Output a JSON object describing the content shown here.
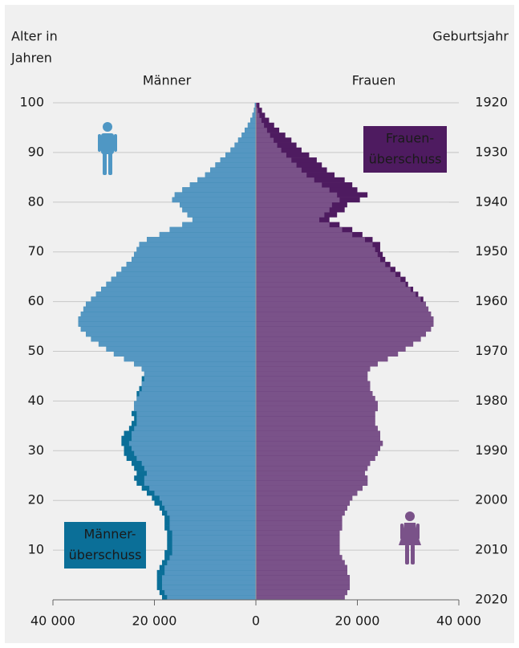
{
  "chart_data": {
    "type": "pyramid",
    "y_label": [
      "Alter in",
      "Jahren"
    ],
    "y2_label": "Geburtsjahr",
    "annotations": [
      {
        "lines": [
          "Frauen-",
          "überschuss"
        ],
        "color": "#4e1b60",
        "side": "right"
      },
      {
        "lines": [
          "Männer-",
          "überschuss"
        ],
        "color": "#0b6f98",
        "side": "left"
      }
    ],
    "ages": [
      0,
      1,
      2,
      3,
      4,
      5,
      6,
      7,
      8,
      9,
      10,
      11,
      12,
      13,
      14,
      15,
      16,
      17,
      18,
      19,
      20,
      21,
      22,
      23,
      24,
      25,
      26,
      27,
      28,
      29,
      30,
      31,
      32,
      33,
      34,
      35,
      36,
      37,
      38,
      39,
      40,
      41,
      42,
      43,
      44,
      45,
      46,
      47,
      48,
      49,
      50,
      51,
      52,
      53,
      54,
      55,
      56,
      57,
      58,
      59,
      60,
      61,
      62,
      63,
      64,
      65,
      66,
      67,
      68,
      69,
      70,
      71,
      72,
      73,
      74,
      75,
      76,
      77,
      78,
      79,
      80,
      81,
      82,
      83,
      84,
      85,
      86,
      87,
      88,
      89,
      90,
      91,
      92,
      93,
      94,
      95,
      96,
      97,
      98,
      99
    ],
    "series": [
      {
        "name": "Männer",
        "color": "#5597c2",
        "surplus_color": "#0b6f98",
        "label_color": "#5aa0cc",
        "side": "left",
        "values": [
          18500,
          19000,
          19500,
          19500,
          19500,
          19500,
          19000,
          18500,
          18000,
          18000,
          17500,
          17500,
          17500,
          17500,
          18000,
          18000,
          18000,
          18500,
          19000,
          20000,
          20500,
          21500,
          22500,
          23500,
          24000,
          23500,
          24000,
          24500,
          25500,
          26000,
          26000,
          26500,
          26500,
          26000,
          25000,
          24500,
          24000,
          24500,
          24000,
          24000,
          23500,
          23500,
          23000,
          22500,
          22500,
          22000,
          22500,
          24000,
          26000,
          28000,
          29500,
          31000,
          32500,
          33500,
          34500,
          35000,
          35000,
          34500,
          34000,
          33500,
          32500,
          31500,
          30500,
          29500,
          28500,
          27500,
          26500,
          25500,
          24500,
          24000,
          23500,
          23000,
          21500,
          19000,
          17000,
          14500,
          12500,
          13500,
          14500,
          15000,
          16500,
          16000,
          14500,
          13000,
          11500,
          10000,
          9000,
          8000,
          7000,
          6000,
          5000,
          4200,
          3500,
          2800,
          2200,
          1600,
          1100,
          700,
          400,
          200
        ]
      },
      {
        "name": "Frauen",
        "color": "#7a5289",
        "surplus_color": "#4e1b60",
        "label_color": "#8b5a9a",
        "side": "right",
        "values": [
          17500,
          18000,
          18500,
          18500,
          18500,
          18000,
          18000,
          17500,
          17000,
          16500,
          16500,
          16500,
          16500,
          16500,
          17000,
          17000,
          17000,
          17500,
          18000,
          18500,
          19000,
          20000,
          21000,
          22000,
          22000,
          21500,
          22000,
          22500,
          23500,
          24000,
          24500,
          25000,
          24500,
          24500,
          24000,
          23500,
          23500,
          23500,
          24000,
          24000,
          23500,
          23000,
          22500,
          22500,
          22000,
          22000,
          22500,
          24000,
          26000,
          28000,
          29500,
          31000,
          32500,
          33500,
          34500,
          35000,
          35000,
          34500,
          34000,
          33500,
          33000,
          32000,
          31000,
          30000,
          29500,
          28500,
          27500,
          26500,
          25500,
          25000,
          24500,
          24500,
          23000,
          21000,
          19000,
          16500,
          14500,
          16000,
          17500,
          18000,
          20500,
          22000,
          20000,
          19000,
          17500,
          15500,
          14000,
          13000,
          12000,
          10500,
          9000,
          8000,
          7000,
          5800,
          4600,
          3600,
          2600,
          1800,
          1200,
          700
        ]
      }
    ],
    "xlim": [
      0,
      40000
    ],
    "xticks_left": [
      {
        "value": 40000,
        "label": "40 000"
      },
      {
        "value": 20000,
        "label": "20 000"
      }
    ],
    "xticks": [
      0,
      {
        "value": 20000,
        "label": "20 000"
      },
      {
        "value": 40000,
        "label": "40 000"
      }
    ],
    "ylim": [
      0,
      100
    ],
    "yticks": [
      10,
      20,
      30,
      40,
      50,
      60,
      70,
      80,
      90,
      100
    ],
    "y2lim": [
      2020,
      1920
    ],
    "y2ticks": [
      1920,
      1930,
      1940,
      1950,
      1960,
      1970,
      1980,
      1990,
      2000,
      2010,
      2020
    ],
    "grid": true
  }
}
